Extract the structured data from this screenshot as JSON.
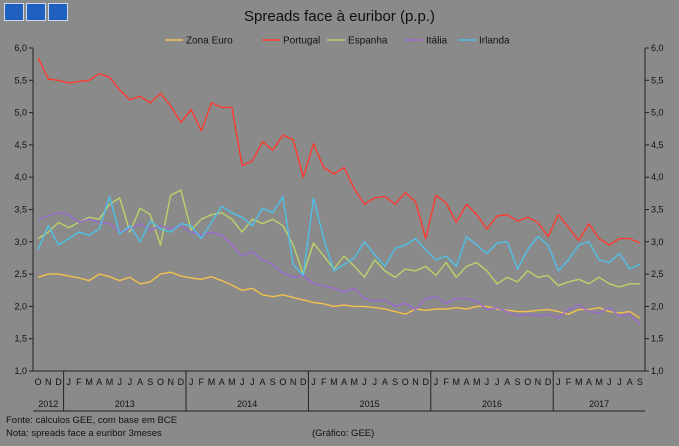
{
  "header": {
    "logo": "GEE logo"
  },
  "footer": {
    "source": "Fonte: cálculos GEE, com base em BCE",
    "note": "Nota: spreads face a euribor 3meses",
    "credit": "(Gráfico: GEE)"
  },
  "chart_data": {
    "type": "line",
    "title": "Spreads face à euribor (p.p.)",
    "xlabel": "",
    "ylabel": "",
    "ylim": [
      1.0,
      6.0
    ],
    "yticks": [
      "1,0",
      "1,5",
      "2,0",
      "2,5",
      "3,0",
      "3,5",
      "4,0",
      "4,5",
      "5,0",
      "5,5",
      "6,0"
    ],
    "grid": false,
    "legend_position": "top",
    "month_labels": [
      "O",
      "N",
      "D",
      "J",
      "F",
      "M",
      "A",
      "M",
      "J",
      "J",
      "A",
      "S",
      "O",
      "N",
      "D",
      "J",
      "F",
      "M",
      "A",
      "M",
      "J",
      "J",
      "A",
      "S",
      "O",
      "N",
      "D",
      "J",
      "F",
      "M",
      "A",
      "M",
      "J",
      "J",
      "A",
      "S",
      "O",
      "N",
      "D",
      "J",
      "F",
      "M",
      "A",
      "M",
      "J",
      "J",
      "A",
      "S",
      "O",
      "N",
      "D",
      "J",
      "F",
      "M",
      "A",
      "M",
      "J",
      "J",
      "A",
      "S"
    ],
    "years": [
      {
        "label": "2012",
        "start": 0,
        "count": 3
      },
      {
        "label": "2013",
        "start": 3,
        "count": 12
      },
      {
        "label": "2014",
        "start": 15,
        "count": 12
      },
      {
        "label": "2015",
        "start": 27,
        "count": 12
      },
      {
        "label": "2016",
        "start": 39,
        "count": 12
      },
      {
        "label": "2017",
        "start": 51,
        "count": 9
      }
    ],
    "series": [
      {
        "name": "Zona Euro",
        "color": "#f2c14e",
        "values": [
          2.45,
          2.5,
          2.5,
          2.47,
          2.44,
          2.4,
          2.5,
          2.46,
          2.4,
          2.45,
          2.35,
          2.38,
          2.5,
          2.53,
          2.47,
          2.44,
          2.42,
          2.46,
          2.4,
          2.33,
          2.25,
          2.28,
          2.18,
          2.15,
          2.18,
          2.14,
          2.1,
          2.06,
          2.04,
          2.0,
          2.02,
          2.0,
          2.0,
          1.98,
          1.96,
          1.92,
          1.88,
          1.96,
          1.94,
          1.96,
          1.96,
          1.98,
          1.96,
          2.0,
          2.0,
          1.96,
          1.94,
          1.92,
          1.92,
          1.94,
          1.95,
          1.92,
          1.88,
          1.95,
          1.95,
          1.98,
          1.92,
          1.9,
          1.92,
          1.82
        ]
      },
      {
        "name": "Portugal",
        "color": "#ff3b2f",
        "values": [
          5.85,
          5.52,
          5.5,
          5.46,
          5.48,
          5.5,
          5.6,
          5.55,
          5.35,
          5.2,
          5.25,
          5.15,
          5.3,
          5.1,
          4.85,
          5.05,
          4.72,
          5.15,
          5.08,
          5.08,
          4.18,
          4.25,
          4.55,
          4.42,
          4.65,
          4.58,
          4.0,
          4.52,
          4.15,
          4.05,
          4.15,
          3.82,
          3.58,
          3.68,
          3.7,
          3.58,
          3.76,
          3.62,
          3.05,
          3.72,
          3.6,
          3.3,
          3.58,
          3.42,
          3.2,
          3.4,
          3.42,
          3.32,
          3.38,
          3.3,
          3.08,
          3.42,
          3.22,
          3.02,
          3.28,
          3.05,
          2.95,
          3.05,
          3.05,
          2.98
        ]
      },
      {
        "name": "Espanha",
        "color": "#b9d36a",
        "values": [
          3.05,
          3.15,
          3.3,
          3.22,
          3.3,
          3.38,
          3.35,
          3.58,
          3.68,
          3.15,
          3.52,
          3.42,
          2.95,
          3.72,
          3.8,
          3.18,
          3.35,
          3.42,
          3.45,
          3.35,
          3.15,
          3.35,
          3.28,
          3.35,
          3.25,
          2.95,
          2.5,
          2.98,
          2.78,
          2.58,
          2.78,
          2.62,
          2.45,
          2.72,
          2.55,
          2.45,
          2.58,
          2.55,
          2.62,
          2.48,
          2.68,
          2.45,
          2.62,
          2.68,
          2.55,
          2.35,
          2.45,
          2.38,
          2.55,
          2.45,
          2.48,
          2.32,
          2.38,
          2.42,
          2.35,
          2.45,
          2.35,
          2.3,
          2.35,
          2.35
        ]
      },
      {
        "name": "Itália",
        "color": "#9a6ad0",
        "values": [
          3.35,
          3.4,
          3.45,
          3.42,
          3.3,
          3.35,
          3.3,
          3.28,
          3.15,
          3.2,
          3.28,
          3.18,
          3.25,
          3.2,
          3.25,
          3.15,
          3.1,
          3.15,
          3.1,
          2.95,
          2.78,
          2.85,
          2.72,
          2.65,
          2.52,
          2.45,
          2.48,
          2.35,
          2.32,
          2.28,
          2.22,
          2.28,
          2.12,
          2.08,
          2.1,
          2.0,
          2.05,
          1.95,
          2.12,
          2.15,
          2.05,
          2.12,
          2.12,
          2.08,
          1.95,
          1.98,
          1.92,
          1.85,
          1.88,
          1.85,
          1.88,
          1.82,
          1.95,
          2.02,
          1.92,
          1.9,
          1.98,
          1.85,
          1.88,
          1.72
        ]
      },
      {
        "name": "Irlanda",
        "color": "#4fc0e8",
        "values": [
          2.88,
          3.25,
          2.95,
          3.05,
          3.15,
          3.1,
          3.2,
          3.7,
          3.12,
          3.25,
          3.0,
          3.32,
          3.2,
          3.15,
          3.28,
          3.25,
          3.05,
          3.3,
          3.55,
          3.45,
          3.38,
          3.25,
          3.52,
          3.45,
          3.7,
          2.65,
          2.48,
          3.68,
          3.05,
          2.55,
          2.65,
          2.75,
          3.0,
          2.8,
          2.62,
          2.9,
          2.95,
          3.05,
          2.88,
          2.72,
          2.78,
          2.62,
          3.08,
          2.95,
          2.82,
          2.98,
          3.0,
          2.58,
          2.88,
          3.08,
          2.95,
          2.55,
          2.72,
          2.95,
          3.0,
          2.72,
          2.68,
          2.82,
          2.58,
          2.65
        ]
      }
    ]
  }
}
